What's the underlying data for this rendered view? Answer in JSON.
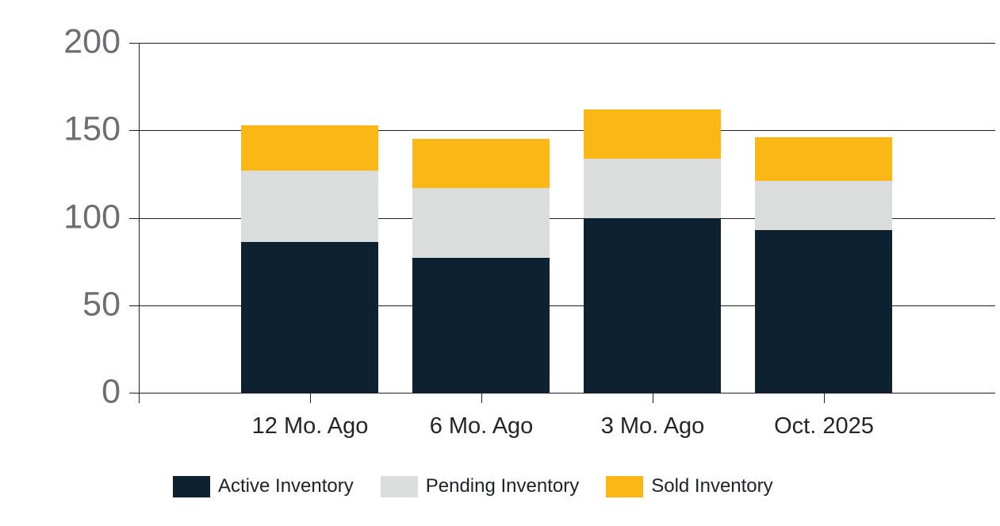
{
  "chart_data": {
    "type": "bar",
    "stacked": true,
    "title": "",
    "xlabel": "",
    "ylabel": "",
    "categories": [
      "12 Mo. Ago",
      "6 Mo. Ago",
      "3 Mo. Ago",
      "Oct. 2025"
    ],
    "series": [
      {
        "name": "Active Inventory",
        "color": "#0D2130",
        "values": [
          86,
          77,
          100,
          93
        ]
      },
      {
        "name": "Pending Inventory",
        "color": "#DBDCDC",
        "values": [
          41,
          40,
          34,
          28
        ]
      },
      {
        "name": "Sold Inventory",
        "color": "#FBB716",
        "values": [
          26,
          28,
          28,
          25
        ]
      }
    ],
    "ylim": [
      0,
      200
    ],
    "yticks": [
      0,
      50,
      100,
      150,
      200
    ],
    "grid": true,
    "legend_position": "bottom"
  },
  "colors": {
    "background": "#FFFFFF",
    "gridline": "#231F20",
    "y_tick_label": "#6D6E71",
    "x_tick_label": "#232528",
    "legend_label": "#1F2224"
  }
}
